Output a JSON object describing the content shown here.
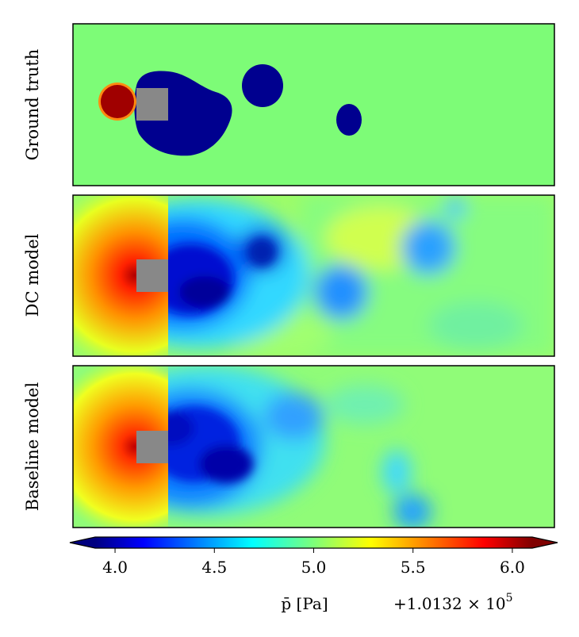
{
  "chart_data": {
    "type": "heatmap",
    "panels": [
      {
        "label": "Ground truth",
        "background_value": 5.0,
        "blobs": [
          {
            "cx": 0.215,
            "cy": 0.52,
            "rx": 0.21,
            "ry": 0.46,
            "v": 4.05
          },
          {
            "cx": 0.395,
            "cy": 0.3,
            "rx": 0.045,
            "ry": 0.12,
            "v": 4.05
          },
          {
            "cx": 0.58,
            "cy": 0.52,
            "rx": 0.028,
            "ry": 0.09,
            "v": 4.05
          },
          {
            "cx": 0.085,
            "cy": 0.47,
            "rx": 0.045,
            "ry": 0.11,
            "v": 6.0
          }
        ]
      },
      {
        "label": "DC model"
      },
      {
        "label": "Baseline model"
      }
    ],
    "colorbar": {
      "colormap": "jet",
      "range": [
        3.9,
        6.1
      ],
      "ticks": [
        4.0,
        4.5,
        5.0,
        5.5,
        6.0
      ],
      "tick_labels": [
        "4.0",
        "4.5",
        "5.0",
        "5.5",
        "6.0"
      ],
      "extend": "both",
      "label": "p̄ [Pa]",
      "offset_text": "+1.0132 × 10",
      "offset_exponent": "5"
    },
    "obstacle_color": "#888888"
  }
}
